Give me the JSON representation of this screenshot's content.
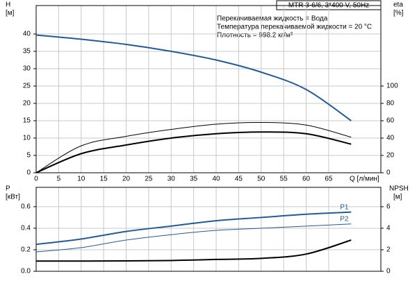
{
  "chart_data": [
    {
      "type": "line",
      "title": "MTR 3-6/6, 3*400 V, 50Hz",
      "annotations": [
        "Перекачиваемая жидкость = Вода",
        "Температура перекачиваемой жидкости = 20 °C",
        "Плотность = 998.2 кг/м³"
      ],
      "ylabel": "H",
      "ylabel_unit": "[м]",
      "y2label": "eta",
      "y2label_unit": "[%]",
      "xlabel": "Q [л/мин]",
      "x": [
        0,
        10,
        20,
        30,
        40,
        50,
        60,
        70
      ],
      "xlim": [
        0,
        76.6
      ],
      "xticks": [
        0,
        5,
        10,
        15,
        20,
        25,
        30,
        35,
        40,
        45,
        50,
        55,
        60,
        65
      ],
      "ylim": [
        0,
        48.2
      ],
      "yticks": [
        0,
        5,
        10,
        15,
        20,
        25,
        30,
        35,
        40
      ],
      "y2lim": [
        0,
        192.8
      ],
      "y2ticks": [
        0,
        20,
        40,
        60,
        80,
        100
      ],
      "grid": true,
      "series": [
        {
          "color": "#1f5a9e",
          "values": [
            39.7,
            38.5,
            37,
            35,
            32.5,
            29,
            24,
            15
          ]
        },
        {
          "color": "#000000",
          "axis": "y2",
          "values": [
            0,
            31,
            42,
            50,
            56,
            58,
            55,
            41
          ]
        },
        {
          "color": "#000000",
          "axis": "y2",
          "values": [
            0,
            22,
            32,
            40,
            45,
            47,
            45,
            33
          ]
        }
      ]
    },
    {
      "type": "line",
      "ylabel": "P",
      "ylabel_unit": "[кВт]",
      "y2label": "NPSH",
      "y2label_unit": "[м]",
      "x": [
        0,
        10,
        20,
        30,
        40,
        50,
        60,
        70
      ],
      "ylim": [
        0,
        0.78
      ],
      "yticks": [
        {
          "value": 0,
          "label": "0.0"
        },
        0.2,
        0.4,
        0.6
      ],
      "y2lim": [
        0,
        7.8
      ],
      "y2ticks": [
        0,
        2,
        4,
        6
      ],
      "grid": true,
      "series": [
        {
          "name": "P1",
          "color": "#1f5a9e",
          "values": [
            0.25,
            0.3,
            0.37,
            0.42,
            0.47,
            0.5,
            0.53,
            0.55
          ]
        },
        {
          "name": "P2",
          "color": "#1f5a9e",
          "values": [
            0.18,
            0.22,
            0.29,
            0.34,
            0.38,
            0.4,
            0.42,
            0.44
          ]
        },
        {
          "color": "#000000",
          "axis": "y2",
          "values": [
            0.95,
            0.95,
            0.97,
            1.0,
            1.1,
            1.2,
            1.6,
            2.9
          ]
        }
      ]
    }
  ]
}
